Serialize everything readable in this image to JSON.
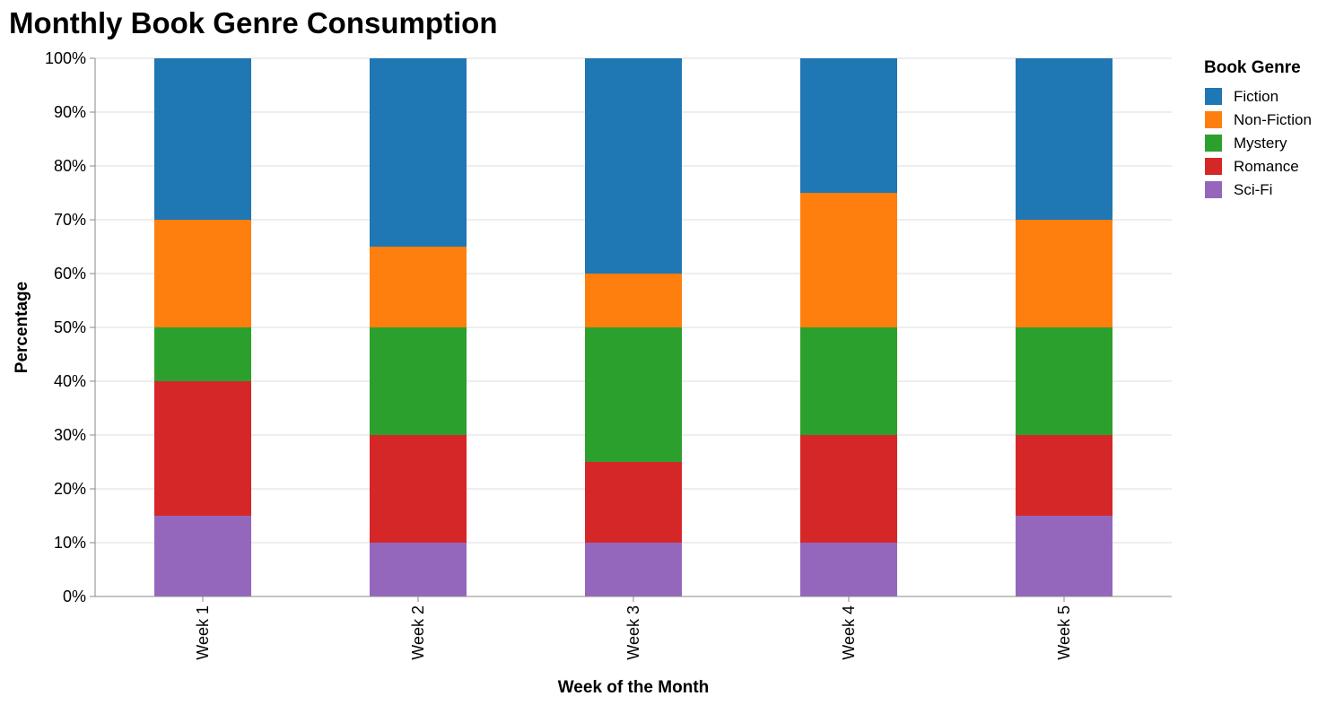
{
  "chart_data": {
    "type": "bar",
    "stacked": true,
    "title": "Monthly Book Genre Consumption",
    "xlabel": "Week of the Month",
    "ylabel": "Percentage",
    "ylim": [
      0,
      100
    ],
    "y_ticks": [
      0,
      10,
      20,
      30,
      40,
      50,
      60,
      70,
      80,
      90,
      100
    ],
    "y_tick_labels": [
      "0%",
      "10%",
      "20%",
      "30%",
      "40%",
      "50%",
      "60%",
      "70%",
      "80%",
      "90%",
      "100%"
    ],
    "grid": true,
    "legend_title": "Book Genre",
    "legend_position": "top-right",
    "categories": [
      "Week 1",
      "Week 2",
      "Week 3",
      "Week 4",
      "Week 5"
    ],
    "series": [
      {
        "name": "Fiction",
        "color": "#1f77b4",
        "values": [
          30,
          35,
          40,
          25,
          30
        ]
      },
      {
        "name": "Non-Fiction",
        "color": "#ff7f0e",
        "values": [
          20,
          15,
          10,
          25,
          20
        ]
      },
      {
        "name": "Mystery",
        "color": "#2ca02c",
        "values": [
          10,
          20,
          25,
          20,
          20
        ]
      },
      {
        "name": "Romance",
        "color": "#d62728",
        "values": [
          25,
          20,
          15,
          20,
          15
        ]
      },
      {
        "name": "Sci-Fi",
        "color": "#9467bd",
        "values": [
          15,
          10,
          10,
          10,
          15
        ]
      }
    ]
  }
}
